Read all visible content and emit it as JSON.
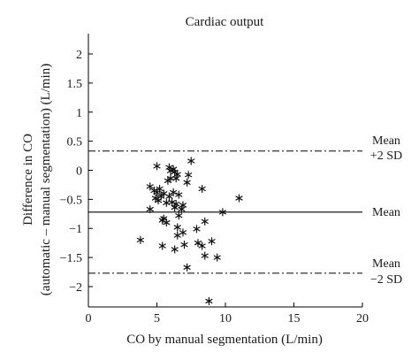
{
  "chart_data": {
    "type": "scatter",
    "title": "Cardiac output",
    "xlabel": "CO by manual segmentation (L/min)",
    "ylabel_line1": "Difference in CO",
    "ylabel_line2": "(automatic – manual segmentation) (L/min)",
    "xlim": [
      0,
      20
    ],
    "ylim": [
      -2.35,
      2.35
    ],
    "xticks": [
      "0",
      "5",
      "10",
      "15",
      "20"
    ],
    "yticks": [
      "2",
      "1.5",
      "1",
      "0.5",
      "0",
      "−0.5",
      "−1",
      "−1.5",
      "−2"
    ],
    "mean": -0.72,
    "upper_sd": 0.33,
    "lower_sd": -1.77,
    "annotations": {
      "upper_line1": "Mean",
      "upper_line2": "+2 SD",
      "mean": "Mean",
      "lower_line1": "Mean",
      "lower_line2": "−2 SD"
    },
    "marker": "asterisk",
    "points": [
      [
        5.0,
        0.07
      ],
      [
        5.9,
        0.05
      ],
      [
        6.0,
        -0.01
      ],
      [
        6.2,
        0.02
      ],
      [
        6.3,
        -0.03
      ],
      [
        7.5,
        0.16
      ],
      [
        6.5,
        -0.07
      ],
      [
        7.3,
        -0.08
      ],
      [
        6.0,
        -0.14
      ],
      [
        6.4,
        -0.14
      ],
      [
        5.8,
        -0.18
      ],
      [
        7.2,
        -0.21
      ],
      [
        4.5,
        -0.28
      ],
      [
        8.3,
        -0.32
      ],
      [
        5.2,
        -0.32
      ],
      [
        4.8,
        -0.35
      ],
      [
        5.0,
        -0.38
      ],
      [
        6.2,
        -0.38
      ],
      [
        5.5,
        -0.4
      ],
      [
        6.6,
        -0.42
      ],
      [
        5.3,
        -0.45
      ],
      [
        4.9,
        -0.48
      ],
      [
        5.9,
        -0.45
      ],
      [
        11.0,
        -0.48
      ],
      [
        5.1,
        -0.52
      ],
      [
        6.1,
        -0.55
      ],
      [
        5.7,
        -0.56
      ],
      [
        6.4,
        -0.58
      ],
      [
        6.9,
        -0.6
      ],
      [
        6.3,
        -0.64
      ],
      [
        4.5,
        -0.67
      ],
      [
        6.8,
        -0.67
      ],
      [
        9.8,
        -0.72
      ],
      [
        6.6,
        -0.78
      ],
      [
        5.5,
        -0.83
      ],
      [
        5.4,
        -0.86
      ],
      [
        5.7,
        -0.9
      ],
      [
        8.5,
        -0.88
      ],
      [
        6.5,
        -0.98
      ],
      [
        7.9,
        -1.01
      ],
      [
        6.9,
        -1.07
      ],
      [
        6.5,
        -1.12
      ],
      [
        3.8,
        -1.2
      ],
      [
        9.0,
        -1.22
      ],
      [
        8.0,
        -1.25
      ],
      [
        7.0,
        -1.28
      ],
      [
        5.4,
        -1.3
      ],
      [
        8.3,
        -1.3
      ],
      [
        6.3,
        -1.36
      ],
      [
        8.5,
        -1.47
      ],
      [
        9.4,
        -1.5
      ],
      [
        7.2,
        -1.67
      ],
      [
        8.8,
        -2.25
      ]
    ]
  }
}
